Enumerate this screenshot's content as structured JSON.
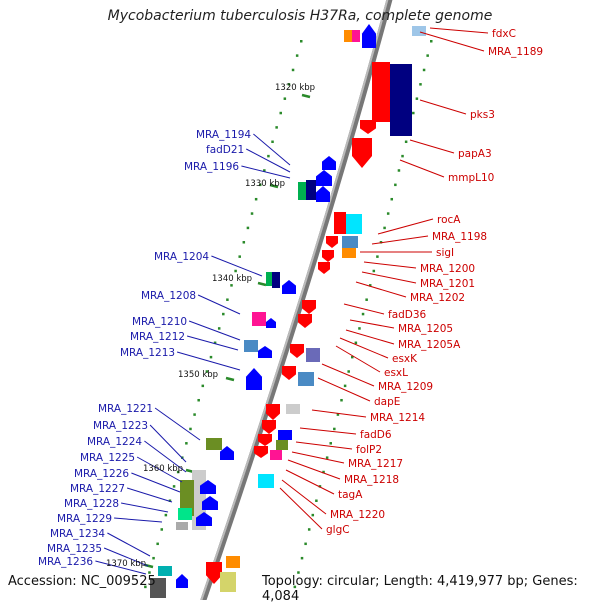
{
  "title": "Mycobacterium tuberculosis H37Ra, complete genome",
  "footer": {
    "accession": "Accession: NC_009525",
    "summary": "Topology: circular; Length: 4,419,977 bp; Genes: 4,084"
  },
  "scale_labels": [
    {
      "text": "1320 kbp"
    },
    {
      "text": "1330 kbp"
    },
    {
      "text": "1340 kbp"
    },
    {
      "text": "1350 kbp"
    },
    {
      "text": "1360 kbp"
    },
    {
      "text": "1370 kbp"
    }
  ],
  "forward_genes": [
    "fdxC",
    "MRA_1189",
    "pks3",
    "papA3",
    "mmpL10",
    "rocA",
    "MRA_1198",
    "sigI",
    "MRA_1200",
    "MRA_1201",
    "MRA_1202",
    "fadD36",
    "MRA_1205",
    "MRA_1205A",
    "esxK",
    "esxL",
    "MRA_1209",
    "dapE",
    "MRA_1214",
    "fadD6",
    "folP2",
    "MRA_1217",
    "MRA_1218",
    "tagA",
    "MRA_1220",
    "glgC"
  ],
  "reverse_genes": [
    "MRA_1194",
    "fadD21",
    "MRA_1196",
    "MRA_1204",
    "MRA_1208",
    "MRA_1210",
    "MRA_1212",
    "MRA_1213",
    "MRA_1221",
    "MRA_1223",
    "MRA_1224",
    "MRA_1225",
    "MRA_1226",
    "MRA_1227",
    "MRA_1228",
    "MRA_1229",
    "MRA_1234",
    "MRA_1235",
    "MRA_1236"
  ],
  "colors": {
    "forward_gene": "#ff0000",
    "reverse_gene": "#0000ff",
    "backbone": "#888888",
    "tick": "#2a8a2a"
  }
}
